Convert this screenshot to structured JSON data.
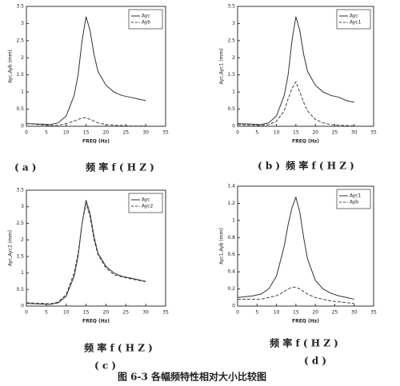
{
  "chart_data": [
    {
      "type": "line",
      "xlabel": "FREQ (Hz)",
      "ylabel": "Ayc,Ayb (mm)",
      "caption_label": "( a )",
      "caption_text": "频  率  f  ( H Z )",
      "x": [
        0,
        2,
        4,
        6,
        8,
        10,
        12,
        13,
        14,
        15,
        16,
        17,
        18,
        20,
        22,
        24,
        26,
        28,
        30
      ],
      "xlim": [
        0,
        35
      ],
      "xticks": [
        0,
        5,
        10,
        15,
        20,
        25,
        30,
        35
      ],
      "ylim": [
        0,
        3.5
      ],
      "yticks": [
        0,
        0.5,
        1,
        1.5,
        2,
        2.5,
        3,
        3.5
      ],
      "series": [
        {
          "name": "Ayc",
          "color": "#333333",
          "style": "solid",
          "values": [
            0.08,
            0.07,
            0.06,
            0.05,
            0.1,
            0.3,
            0.9,
            1.5,
            2.5,
            3.2,
            2.8,
            2.1,
            1.6,
            1.2,
            1.0,
            0.9,
            0.85,
            0.8,
            0.75
          ]
        },
        {
          "name": "Ayb",
          "color": "#444444",
          "style": "dashed",
          "values": [
            0.08,
            0.06,
            0.04,
            0.02,
            0.03,
            0.08,
            0.15,
            0.2,
            0.24,
            0.25,
            0.2,
            0.15,
            0.1,
            0.05,
            0.03,
            0.02,
            0.01,
            0.01,
            0.01
          ]
        }
      ]
    },
    {
      "type": "line",
      "xlabel": "FREQ (Hz)",
      "ylabel": "Ayc,Ayc1 (mm)",
      "caption_label": "( b )",
      "caption_text": "频  率  f  ( H Z )",
      "x": [
        0,
        2,
        4,
        6,
        8,
        10,
        12,
        13,
        14,
        15,
        16,
        17,
        18,
        20,
        22,
        24,
        26,
        28,
        30
      ],
      "xlim": [
        0,
        35
      ],
      "xticks": [
        0,
        5,
        10,
        15,
        20,
        25,
        30,
        35
      ],
      "ylim": [
        0,
        3.5
      ],
      "yticks": [
        0,
        0.5,
        1,
        1.5,
        2,
        2.5,
        3,
        3.5
      ],
      "series": [
        {
          "name": "Ayc",
          "color": "#333333",
          "style": "solid",
          "values": [
            0.08,
            0.07,
            0.06,
            0.05,
            0.1,
            0.3,
            0.9,
            1.5,
            2.5,
            3.2,
            2.8,
            2.1,
            1.6,
            1.2,
            1.0,
            0.9,
            0.85,
            0.75,
            0.7
          ]
        },
        {
          "name": "Ayc1",
          "color": "#444444",
          "style": "dashed",
          "values": [
            0.05,
            0.04,
            0.03,
            0.02,
            0.05,
            0.15,
            0.45,
            0.8,
            1.1,
            1.3,
            1.0,
            0.7,
            0.45,
            0.2,
            0.1,
            0.05,
            0.03,
            0.02,
            0.01
          ]
        }
      ]
    },
    {
      "type": "line",
      "xlabel": "FREQ (Hz)",
      "ylabel": "Ayc,Ayc2 (mm)",
      "caption_label": "( c )",
      "caption_text": "频  率  f  ( H Z )",
      "x": [
        0,
        2,
        4,
        6,
        8,
        10,
        12,
        13,
        14,
        15,
        16,
        17,
        18,
        20,
        22,
        24,
        26,
        28,
        30
      ],
      "xlim": [
        0,
        35
      ],
      "xticks": [
        0,
        5,
        10,
        15,
        20,
        25,
        30,
        35
      ],
      "ylim": [
        0,
        3.5
      ],
      "yticks": [
        0,
        0.5,
        1,
        1.5,
        2,
        2.5,
        3,
        3.5
      ],
      "series": [
        {
          "name": "Ayc",
          "color": "#333333",
          "style": "solid",
          "values": [
            0.08,
            0.07,
            0.06,
            0.05,
            0.1,
            0.3,
            0.9,
            1.5,
            2.5,
            3.2,
            2.8,
            2.1,
            1.6,
            1.2,
            1.0,
            0.9,
            0.85,
            0.8,
            0.75
          ]
        },
        {
          "name": "Ayc2",
          "color": "#444444",
          "style": "dashed",
          "values": [
            0.1,
            0.09,
            0.08,
            0.07,
            0.12,
            0.35,
            1.0,
            1.6,
            2.5,
            3.1,
            2.7,
            2.0,
            1.55,
            1.15,
            0.95,
            0.88,
            0.83,
            0.78,
            0.74
          ]
        }
      ]
    },
    {
      "type": "line",
      "xlabel": "FREQ (Hz)",
      "ylabel": "Ayc1,Ayb (mm)",
      "caption_label": "( d )",
      "caption_text": "频  率  f  ( H Z )",
      "x": [
        0,
        2,
        4,
        6,
        8,
        10,
        12,
        13,
        14,
        15,
        16,
        17,
        18,
        20,
        22,
        24,
        26,
        28,
        30
      ],
      "xlim": [
        0,
        35
      ],
      "xticks": [
        0,
        5,
        10,
        15,
        20,
        25,
        30,
        35
      ],
      "ylim": [
        0,
        1.4
      ],
      "yticks": [
        0,
        0.2,
        0.4,
        0.6,
        0.8,
        1,
        1.2,
        1.4
      ],
      "series": [
        {
          "name": "Ayc1",
          "color": "#333333",
          "style": "solid",
          "values": [
            0.1,
            0.11,
            0.12,
            0.14,
            0.2,
            0.35,
            0.7,
            0.95,
            1.15,
            1.27,
            1.1,
            0.8,
            0.55,
            0.3,
            0.2,
            0.15,
            0.12,
            0.1,
            0.08
          ]
        },
        {
          "name": "Ayb",
          "color": "#444444",
          "style": "dashed",
          "values": [
            0.08,
            0.08,
            0.08,
            0.08,
            0.1,
            0.12,
            0.17,
            0.2,
            0.22,
            0.22,
            0.2,
            0.17,
            0.14,
            0.1,
            0.08,
            0.06,
            0.05,
            0.04,
            0.03
          ]
        }
      ]
    }
  ],
  "figure_caption": "图  6-3  各幅频特性相对大小比较图"
}
